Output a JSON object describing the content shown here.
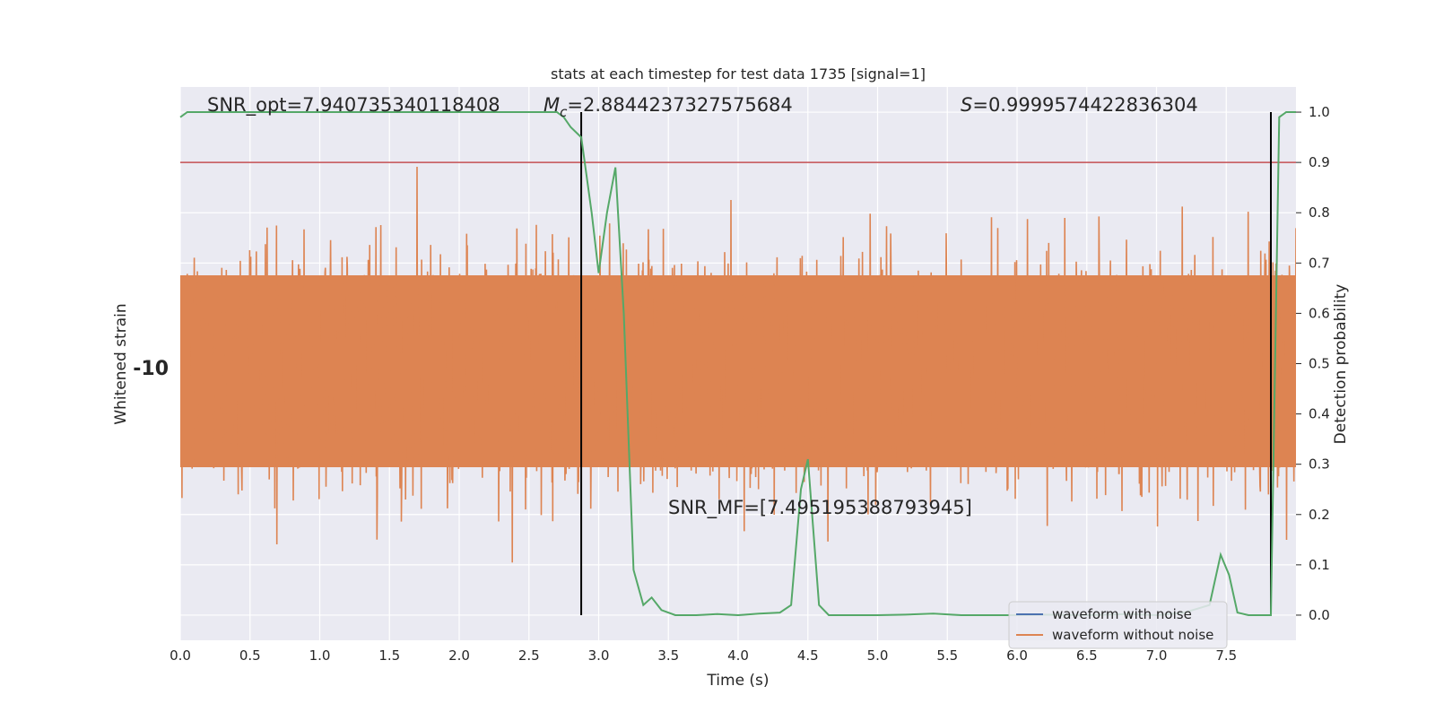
{
  "chart_data": {
    "type": "line",
    "title": "stats at each timestep for test data 1735 [signal=1]",
    "xlabel": "Time (s)",
    "ylabel_left": "Whitened strain",
    "ylabel_right": "Detection probability",
    "xlim": [
      0.0,
      8.0
    ],
    "ylim_right": [
      -0.05,
      1.05
    ],
    "x_ticks": [
      "0.0",
      "0.5",
      "1.0",
      "1.5",
      "2.0",
      "2.5",
      "3.0",
      "3.5",
      "4.0",
      "4.5",
      "5.0",
      "5.5",
      "6.0",
      "6.5",
      "7.0",
      "7.5"
    ],
    "y_ticks_right": [
      "0.0",
      "0.1",
      "0.2",
      "0.3",
      "0.4",
      "0.5",
      "0.6",
      "0.7",
      "0.8",
      "0.9",
      "1.0"
    ],
    "left_axis_tick_label": "-10",
    "grid": true,
    "legend_position": "lower-right",
    "annotations": {
      "snr_opt": "SNR_opt=7.940735340118408",
      "mc_symbol": "M",
      "mc_sub": "c",
      "mc_value": "=2.8844237327575684",
      "s_symbol": "S",
      "s_value": "=0.9999574422836304",
      "snr_mf": "SNR_MF=[7.495195388793945]"
    },
    "vertical_lines_x": [
      2.875,
      7.82
    ],
    "horizontal_threshold": 0.9,
    "series": [
      {
        "name": "waveform with noise",
        "color": "#4c72b0",
        "role": "strain"
      },
      {
        "name": "waveform without noise",
        "color": "#dd8452",
        "role": "strain"
      },
      {
        "color": "#55a868",
        "role": "detection_probability",
        "x": [
          0.0,
          0.05,
          0.1,
          0.2,
          0.5,
          1.0,
          1.5,
          2.0,
          2.5,
          2.7,
          2.75,
          2.8,
          2.875,
          2.95,
          3.0,
          3.06,
          3.12,
          3.18,
          3.25,
          3.32,
          3.38,
          3.45,
          3.55,
          3.7,
          3.85,
          4.0,
          4.15,
          4.3,
          4.38,
          4.45,
          4.5,
          4.58,
          4.65,
          4.8,
          5.0,
          5.2,
          5.4,
          5.6,
          5.8,
          6.0,
          6.2,
          6.5,
          6.8,
          7.0,
          7.2,
          7.38,
          7.46,
          7.52,
          7.58,
          7.66,
          7.75,
          7.82,
          7.88,
          7.93,
          8.0
        ],
        "y": [
          0.99,
          1.0,
          1.0,
          1.0,
          1.0,
          1.0,
          1.0,
          1.0,
          1.0,
          1.0,
          0.99,
          0.97,
          0.95,
          0.8,
          0.68,
          0.8,
          0.89,
          0.6,
          0.09,
          0.02,
          0.035,
          0.01,
          0.0,
          0.0,
          0.002,
          0.0,
          0.003,
          0.005,
          0.02,
          0.25,
          0.31,
          0.02,
          0.0,
          0.0,
          0.0,
          0.001,
          0.003,
          0.0,
          0.0,
          0.0,
          0.001,
          0.0,
          0.002,
          0.0,
          0.005,
          0.02,
          0.12,
          0.08,
          0.005,
          0.0,
          0.0,
          0.0,
          0.99,
          1.0,
          1.0
        ]
      }
    ]
  }
}
